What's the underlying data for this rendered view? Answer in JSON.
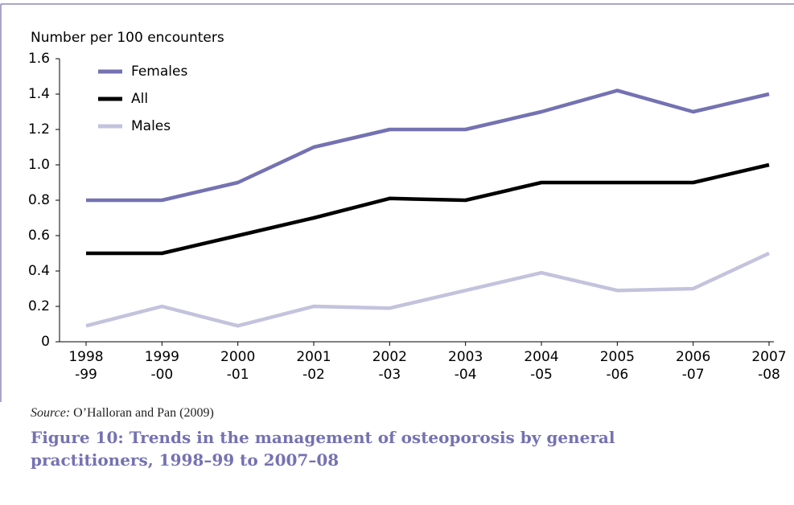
{
  "chart_data": {
    "type": "line",
    "title": "Figure 10: Trends in the management of osteoporosis by general practitioners, 1998–99 to 2007–08",
    "y_label": "Number per 100 encounters",
    "source_label": "Source:",
    "source": "O’Halloran and Pan (2009)",
    "categories": [
      [
        "1998",
        "-99"
      ],
      [
        "1999",
        "-00"
      ],
      [
        "2000",
        "-01"
      ],
      [
        "2001",
        "-02"
      ],
      [
        "2002",
        "-03"
      ],
      [
        "2003",
        "-04"
      ],
      [
        "2004",
        "-05"
      ],
      [
        "2005",
        "-06"
      ],
      [
        "2006",
        "-07"
      ],
      [
        "2007",
        "-08"
      ]
    ],
    "series": [
      {
        "name": "Females",
        "color": "#7472b2",
        "values": [
          0.8,
          0.8,
          0.9,
          1.1,
          1.2,
          1.2,
          1.3,
          1.42,
          1.3,
          1.4
        ]
      },
      {
        "name": "All",
        "color": "#000000",
        "values": [
          0.5,
          0.5,
          0.6,
          0.7,
          0.81,
          0.8,
          0.9,
          0.9,
          0.9,
          1.0
        ]
      },
      {
        "name": "Males",
        "color": "#c3c3dd",
        "values": [
          0.09,
          0.2,
          0.09,
          0.2,
          0.19,
          0.29,
          0.39,
          0.29,
          0.3,
          0.5
        ]
      }
    ],
    "ylim": [
      0,
      1.6
    ],
    "yticks": [
      0,
      0.2,
      0.4,
      0.6,
      0.8,
      {
        "value": 1,
        "label": "1.0"
      },
      1.2,
      1.4,
      1.6
    ],
    "legend": "top-left"
  }
}
